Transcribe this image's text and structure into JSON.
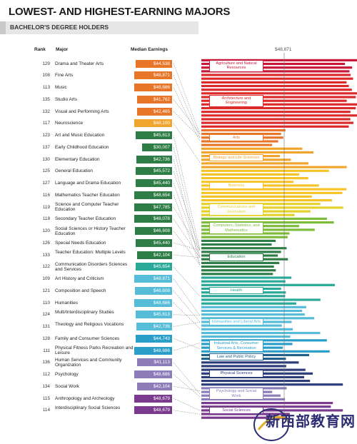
{
  "chart_data": {
    "type": "table",
    "title": "LOWEST- AND HIGHEST-EARNING MAJORS",
    "subtitle": "BACHELOR'S DEGREE HOLDERS",
    "columns": {
      "rank": "Rank",
      "major": "Major",
      "median": "Median Earnings"
    },
    "average_label": "$48,871",
    "rows": [
      {
        "rank": "129",
        "major": "Drama and Theater Arts",
        "earnings": "$44,538",
        "value": 44538,
        "group": "Arts"
      },
      {
        "rank": "108",
        "major": "Fine Arts",
        "earnings": "$48,871",
        "value": 48871,
        "group": "Arts"
      },
      {
        "rank": "113",
        "major": "Music",
        "earnings": "$48,686",
        "value": 48686,
        "group": "Arts"
      },
      {
        "rank": "135",
        "major": "Studio Arts",
        "earnings": "$41,762",
        "value": 41762,
        "group": "Arts"
      },
      {
        "rank": "132",
        "major": "Visual and Performing Arts",
        "earnings": "$42,465",
        "value": 42465,
        "group": "Arts"
      },
      {
        "rank": "117",
        "major": "Neuroscience",
        "earnings": "$48,100",
        "value": 48100,
        "group": "Biology and Life Sciences"
      },
      {
        "rank": "123",
        "major": "Art and Music Education",
        "earnings": "$45,613",
        "value": 45613,
        "group": "Education"
      },
      {
        "rank": "137",
        "major": "Early Childhood Education",
        "earnings": "$30,007",
        "value": 30007,
        "group": "Education"
      },
      {
        "rank": "130",
        "major": "Elementary Education",
        "earnings": "$42,736",
        "value": 42736,
        "group": "Education"
      },
      {
        "rank": "125",
        "major": "General Education",
        "earnings": "$45,572",
        "value": 45572,
        "group": "Education"
      },
      {
        "rank": "127",
        "major": "Language and Drama Education",
        "earnings": "$45,440",
        "value": 45440,
        "group": "Education"
      },
      {
        "rank": "116",
        "major": "Mathematics Teacher Education",
        "earnings": "$48,654",
        "value": 48654,
        "group": "Education"
      },
      {
        "rank": "119",
        "major": "Science and Computer Teacher Education",
        "earnings": "$47,785",
        "value": 47785,
        "group": "Education"
      },
      {
        "rank": "118",
        "major": "Secondary Teacher Education",
        "earnings": "$48,078",
        "value": 48078,
        "group": "Education"
      },
      {
        "rank": "120",
        "major": "Social Sciences or History Teacher Education",
        "earnings": "$46,608",
        "value": 46608,
        "group": "Education"
      },
      {
        "rank": "126",
        "major": "Special Needs Education",
        "earnings": "$45,440",
        "value": 45440,
        "group": "Education"
      },
      {
        "rank": "133",
        "major": "Teacher Education: Multiple Levels",
        "earnings": "$42,104",
        "value": 42104,
        "group": "Education"
      },
      {
        "rank": "122",
        "major": "Communication Disorders Sciences and Services",
        "earnings": "$45,654",
        "value": 45654,
        "group": "Health"
      },
      {
        "rank": "109",
        "major": "Art History and Criticism",
        "earnings": "$48,871",
        "value": 48871,
        "group": "Humanities and Liberal Arts"
      },
      {
        "rank": "121",
        "major": "Composition and Speech",
        "earnings": "$46,608",
        "value": 46608,
        "group": "Humanities and Liberal Arts"
      },
      {
        "rank": "110",
        "major": "Humanities",
        "earnings": "$48,686",
        "value": 48686,
        "group": "Humanities and Liberal Arts"
      },
      {
        "rank": "124",
        "major": "Multi/Interdisciplinary Studies",
        "earnings": "$45,613",
        "value": 45613,
        "group": "Humanities and Liberal Arts"
      },
      {
        "rank": "131",
        "major": "Theology and Religious Vocations",
        "earnings": "$42,736",
        "value": 42736,
        "group": "Humanities and Liberal Arts"
      },
      {
        "rank": "128",
        "major": "Family and Consumer Sciences",
        "earnings": "$44,743",
        "value": 44743,
        "group": "Industrial Arts, Consumer Services & Recreation"
      },
      {
        "rank": "111",
        "major": "Physical Fitness Parks Recreation and Leisure",
        "earnings": "$48,686",
        "value": 48686,
        "group": "Industrial Arts, Consumer Services & Recreation"
      },
      {
        "rank": "136",
        "major": "Human Services and Community Organization",
        "earnings": "$41,113",
        "value": 41113,
        "group": "Psychology and Social Work"
      },
      {
        "rank": "112",
        "major": "Psychology",
        "earnings": "$48,686",
        "value": 48686,
        "group": "Psychology and Social Work"
      },
      {
        "rank": "134",
        "major": "Social Work",
        "earnings": "$42,104",
        "value": 42104,
        "group": "Psychology and Social Work"
      },
      {
        "rank": "115",
        "major": "Anthropology and Archeology",
        "earnings": "$48,679",
        "value": 48679,
        "group": "Social Sciences"
      },
      {
        "rank": "114",
        "major": "Interdisciplinary Social Sciences",
        "earnings": "$48,679",
        "value": 48679,
        "group": "Social Sciences"
      }
    ],
    "groups": [
      {
        "name": "Agriculture and Natural Resources",
        "color": "#c8183a",
        "bars": 4
      },
      {
        "name": "Architecture and Engineering",
        "color": "#dc2a2a",
        "bars": 15
      },
      {
        "name": "Arts",
        "color": "#e8762a",
        "bars": 5
      },
      {
        "name": "Biology and Life Sciences",
        "color": "#f2a52c",
        "bars": 6
      },
      {
        "name": "Business",
        "color": "#f6c328",
        "bars": 9
      },
      {
        "name": "Communications and Journalism",
        "color": "#e4d22c",
        "bars": 4
      },
      {
        "name": "Computers, Statistics, and Mathematics",
        "color": "#7cbc3a",
        "bars": 6
      },
      {
        "name": "Education",
        "color": "#2e7d46",
        "bars": 10
      },
      {
        "name": "Health",
        "color": "#2aa898",
        "bars": 8
      },
      {
        "name": "Humanities and Liberal Arts",
        "color": "#56bcd8",
        "bars": 9
      },
      {
        "name": "Industrial Arts, Consumer Services & Recreation",
        "color": "#2a9ec8",
        "bars": 4
      },
      {
        "name": "Law and Public Policy",
        "color": "#22618a",
        "bars": 2
      },
      {
        "name": "Physical Sciences",
        "color": "#2c3d7a",
        "bars": 7
      },
      {
        "name": "Psychology and Social Work",
        "color": "#8c7cb8",
        "bars": 4
      },
      {
        "name": "Social Sciences",
        "color": "#7a3a8e",
        "bars": 5
      }
    ]
  },
  "watermark": {
    "text": "新西部教育网"
  }
}
